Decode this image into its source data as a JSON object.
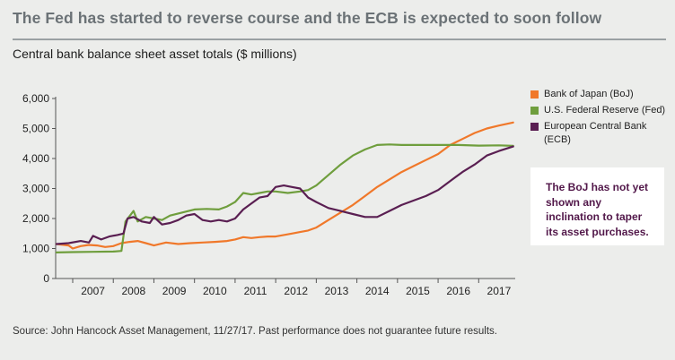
{
  "title": "The Fed has started to reverse course and the ECB is expected to soon follow",
  "subtitle": "Central bank balance sheet asset totals ($ millions)",
  "callout": "The BoJ has not yet shown any inclination to taper its asset purchases.",
  "source": "Source: John Hancock Asset Management, 11/27/17. Past performance does not guarantee future results.",
  "colors": {
    "boj": "#f0782a",
    "fed": "#6f9e3d",
    "ecb": "#5a1f52",
    "axis": "#555555",
    "callout_bg": "#ffffff"
  },
  "chart_data": {
    "type": "line",
    "xlabel": "",
    "ylabel": "",
    "xlim": [
      2006.58,
      2017.9
    ],
    "ylim": [
      0,
      6000
    ],
    "x_ticks": [
      "2007",
      "2008",
      "2009",
      "2010",
      "2011",
      "2012",
      "2013",
      "2014",
      "2015",
      "2016",
      "2017"
    ],
    "y_ticks": [
      "0",
      "1,000",
      "2,000",
      "3,000",
      "4,000",
      "5,000",
      "6,000"
    ],
    "legend_position": "right",
    "series": [
      {
        "name": "Bank of Japan (BoJ)",
        "color_key": "boj",
        "x": [
          2006.6,
          2006.9,
          2007.0,
          2007.2,
          2007.4,
          2007.6,
          2007.8,
          2008.0,
          2008.2,
          2008.4,
          2008.6,
          2008.8,
          2009.0,
          2009.3,
          2009.6,
          2009.9,
          2010.2,
          2010.5,
          2010.8,
          2011.0,
          2011.2,
          2011.4,
          2011.6,
          2011.8,
          2012.0,
          2012.2,
          2012.4,
          2012.6,
          2012.8,
          2013.0,
          2013.3,
          2013.6,
          2013.9,
          2014.2,
          2014.5,
          2014.8,
          2015.1,
          2015.4,
          2015.7,
          2016.0,
          2016.3,
          2016.6,
          2016.9,
          2017.2,
          2017.5,
          2017.85
        ],
        "y": [
          1150,
          1100,
          1000,
          1080,
          1120,
          1100,
          1050,
          1080,
          1180,
          1220,
          1250,
          1180,
          1100,
          1200,
          1150,
          1180,
          1200,
          1220,
          1250,
          1300,
          1380,
          1350,
          1380,
          1400,
          1400,
          1450,
          1500,
          1550,
          1600,
          1700,
          1950,
          2200,
          2450,
          2750,
          3050,
          3300,
          3550,
          3750,
          3950,
          4150,
          4450,
          4650,
          4850,
          5000,
          5100,
          5200
        ]
      },
      {
        "name": "U.S. Federal Reserve (Fed)",
        "color_key": "fed",
        "x": [
          2006.6,
          2007.0,
          2007.5,
          2008.0,
          2008.2,
          2008.3,
          2008.5,
          2008.6,
          2008.8,
          2009.0,
          2009.2,
          2009.4,
          2009.7,
          2010.0,
          2010.3,
          2010.6,
          2010.8,
          2011.0,
          2011.2,
          2011.4,
          2011.6,
          2011.8,
          2012.0,
          2012.3,
          2012.6,
          2012.8,
          2013.0,
          2013.3,
          2013.6,
          2013.9,
          2014.2,
          2014.5,
          2014.8,
          2015.1,
          2015.5,
          2016.0,
          2016.5,
          2017.0,
          2017.5,
          2017.85
        ],
        "y": [
          870,
          880,
          890,
          900,
          920,
          1900,
          2250,
          1900,
          2050,
          2000,
          1950,
          2100,
          2200,
          2300,
          2320,
          2300,
          2400,
          2550,
          2850,
          2800,
          2850,
          2900,
          2900,
          2850,
          2900,
          2950,
          3100,
          3450,
          3800,
          4100,
          4300,
          4450,
          4470,
          4450,
          4450,
          4450,
          4450,
          4430,
          4440,
          4420
        ]
      },
      {
        "name": "European Central Bank (ECB)",
        "color_key": "ecb",
        "x": [
          2006.6,
          2006.9,
          2007.2,
          2007.4,
          2007.5,
          2007.7,
          2007.9,
          2008.1,
          2008.25,
          2008.35,
          2008.5,
          2008.7,
          2008.9,
          2009.0,
          2009.2,
          2009.4,
          2009.6,
          2009.8,
          2010.0,
          2010.2,
          2010.4,
          2010.6,
          2010.8,
          2011.0,
          2011.2,
          2011.4,
          2011.6,
          2011.8,
          2012.0,
          2012.2,
          2012.4,
          2012.6,
          2012.8,
          2013.0,
          2013.3,
          2013.6,
          2013.9,
          2014.2,
          2014.5,
          2014.8,
          2015.1,
          2015.4,
          2015.7,
          2016.0,
          2016.3,
          2016.6,
          2016.9,
          2017.2,
          2017.5,
          2017.85
        ],
        "y": [
          1150,
          1180,
          1250,
          1200,
          1420,
          1300,
          1400,
          1450,
          1500,
          2000,
          2050,
          1900,
          1850,
          2050,
          1800,
          1850,
          1950,
          2100,
          2150,
          1950,
          1900,
          1950,
          1900,
          2000,
          2300,
          2500,
          2700,
          2750,
          3050,
          3100,
          3050,
          3000,
          2700,
          2550,
          2350,
          2250,
          2150,
          2050,
          2050,
          2250,
          2450,
          2600,
          2750,
          2950,
          3250,
          3550,
          3800,
          4100,
          4250,
          4400
        ]
      }
    ]
  },
  "legend_items": [
    {
      "label": "Bank of Japan (BoJ)",
      "color_key": "boj"
    },
    {
      "label": "U.S. Federal Reserve (Fed)",
      "color_key": "fed"
    },
    {
      "label": "European Central Bank (ECB)",
      "color_key": "ecb"
    }
  ]
}
